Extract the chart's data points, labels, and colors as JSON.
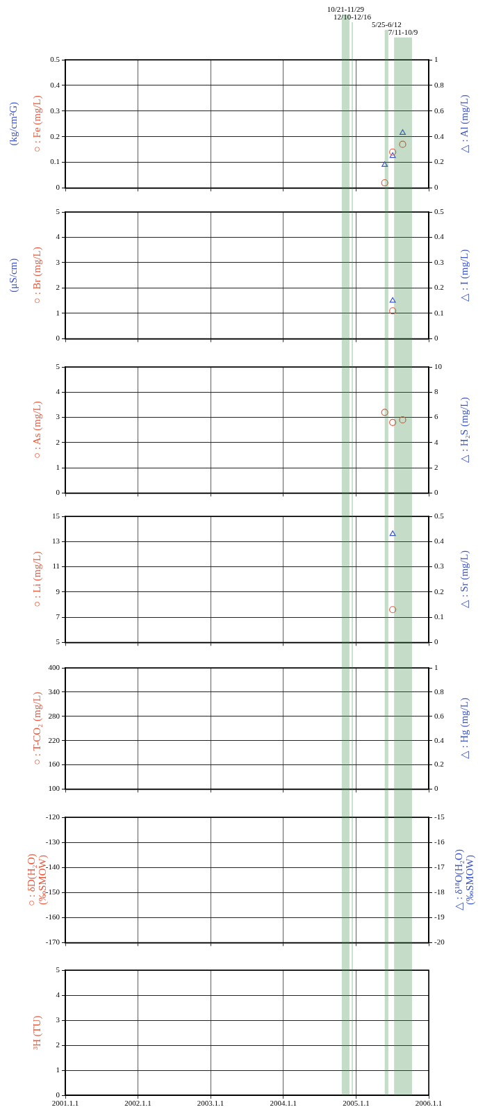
{
  "chart_data": [
    {
      "type": "scatter",
      "ylabel": "○ : Fe (mg/L)",
      "y2label": "△ : Al (mg/L)",
      "annotations": [
        "(kg/cm²G)"
      ],
      "xlim": [
        "2001-01-01",
        "2006-01-01"
      ],
      "xticks": [
        {
          "value": "2001-01-01",
          "label": null
        },
        {
          "value": "2002-01-01",
          "label": null
        },
        {
          "value": "2003-01-01",
          "label": null
        },
        {
          "value": "2004-01-01",
          "label": null
        },
        {
          "value": "2005-01-01",
          "label": null
        },
        {
          "value": "2006-01-01",
          "label": null
        }
      ],
      "ylim": [
        0,
        0.5
      ],
      "yticks": [
        0,
        0.1,
        0.2,
        0.3,
        0.4,
        0.5
      ],
      "y2lim": [
        0,
        1
      ],
      "y2ticks": [
        0,
        0.2,
        0.4,
        0.6,
        0.8,
        1
      ],
      "grid": true,
      "tick_labels": "y",
      "series": [
        {
          "color": "#e8583c",
          "marker": "circle",
          "x": [
            "2005-05-25",
            "2005-07-04",
            "2005-08-23"
          ],
          "values": [
            0.02,
            0.14,
            0.17
          ]
        },
        {
          "color": "#3c55cc",
          "marker": "triangle",
          "axis": "y2",
          "x": [
            "2005-05-25",
            "2005-07-04",
            "2005-08-23"
          ],
          "values": [
            0.18,
            0.25,
            0.43
          ]
        }
      ],
      "bands": [
        {
          "axis": "x",
          "from": "2004-10-21",
          "to": "2004-11-29",
          "label": "10/21-11/29",
          "color": "#3a8a4a"
        },
        {
          "axis": "x",
          "from": "2004-12-10",
          "to": "2004-12-16",
          "label": "12/10-12/16",
          "color": "#3a8a4a"
        },
        {
          "axis": "x",
          "from": "2005-05-25",
          "to": "2005-06-12",
          "label": "5/25-6/12",
          "color": "#3a8a4a"
        },
        {
          "axis": "x",
          "from": "2005-07-11",
          "to": "2005-10-09",
          "label": "7/11-10/9",
          "color": "#3a8a4a"
        }
      ]
    },
    {
      "type": "scatter",
      "ylabel": "○ : Br (mg/L)",
      "y2label": "△ : I (mg/L)",
      "annotations": [
        "(μS/cm)"
      ],
      "xlim": [
        "2001-01-01",
        "2006-01-01"
      ],
      "xticks": [
        {
          "value": "2001-01-01",
          "label": null
        },
        {
          "value": "2002-01-01",
          "label": null
        },
        {
          "value": "2003-01-01",
          "label": null
        },
        {
          "value": "2004-01-01",
          "label": null
        },
        {
          "value": "2005-01-01",
          "label": null
        },
        {
          "value": "2006-01-01",
          "label": null
        }
      ],
      "ylim": [
        0,
        5
      ],
      "yticks": [
        0,
        1,
        2,
        3,
        4,
        5
      ],
      "y2lim": [
        0,
        0.5
      ],
      "y2ticks": [
        0,
        0.1,
        0.2,
        0.3,
        0.4,
        0.5
      ],
      "grid": true,
      "tick_labels": "y",
      "series": [
        {
          "color": "#e8583c",
          "marker": "circle",
          "x": [
            "2005-07-04"
          ],
          "values": [
            1.1
          ]
        },
        {
          "color": "#3c55cc",
          "marker": "triangle",
          "axis": "y2",
          "x": [
            "2005-07-04"
          ],
          "values": [
            0.15
          ]
        }
      ],
      "bands": [
        {
          "axis": "x",
          "from": "2004-10-21",
          "to": "2004-11-29",
          "color": "#3a8a4a"
        },
        {
          "axis": "x",
          "from": "2004-12-10",
          "to": "2004-12-16",
          "color": "#3a8a4a"
        },
        {
          "axis": "x",
          "from": "2005-05-25",
          "to": "2005-06-12",
          "color": "#3a8a4a"
        },
        {
          "axis": "x",
          "from": "2005-07-11",
          "to": "2005-10-09",
          "color": "#3a8a4a"
        }
      ]
    },
    {
      "type": "scatter",
      "ylabel": "○ : As (mg/L)",
      "y2label": "△ : H₂S (mg/L)",
      "xlim": [
        "2001-01-01",
        "2006-01-01"
      ],
      "xticks": [
        {
          "value": "2001-01-01",
          "label": null
        },
        {
          "value": "2002-01-01",
          "label": null
        },
        {
          "value": "2003-01-01",
          "label": null
        },
        {
          "value": "2004-01-01",
          "label": null
        },
        {
          "value": "2005-01-01",
          "label": null
        },
        {
          "value": "2006-01-01",
          "label": null
        }
      ],
      "ylim": [
        0,
        5
      ],
      "yticks": [
        0,
        1,
        2,
        3,
        4,
        5
      ],
      "y2lim": [
        0,
        10
      ],
      "y2ticks": [
        0,
        2,
        4,
        6,
        8,
        10
      ],
      "grid": true,
      "tick_labels": "y",
      "series": [
        {
          "color": "#e8583c",
          "marker": "circle",
          "x": [
            "2005-05-25",
            "2005-07-04",
            "2005-08-23"
          ],
          "values": [
            3.2,
            2.8,
            2.9
          ]
        }
      ],
      "bands": [
        {
          "axis": "x",
          "from": "2004-10-21",
          "to": "2004-11-29",
          "color": "#3a8a4a"
        },
        {
          "axis": "x",
          "from": "2004-12-10",
          "to": "2004-12-16",
          "color": "#3a8a4a"
        },
        {
          "axis": "x",
          "from": "2005-05-25",
          "to": "2005-06-12",
          "color": "#3a8a4a"
        },
        {
          "axis": "x",
          "from": "2005-07-11",
          "to": "2005-10-09",
          "color": "#3a8a4a"
        }
      ]
    },
    {
      "type": "scatter",
      "ylabel": "○ : Li (mg/L)",
      "y2label": "△ : Sr (mg/L)",
      "xlim": [
        "2001-01-01",
        "2006-01-01"
      ],
      "xticks": [
        {
          "value": "2001-01-01",
          "label": null
        },
        {
          "value": "2002-01-01",
          "label": null
        },
        {
          "value": "2003-01-01",
          "label": null
        },
        {
          "value": "2004-01-01",
          "label": null
        },
        {
          "value": "2005-01-01",
          "label": null
        },
        {
          "value": "2006-01-01",
          "label": null
        }
      ],
      "ylim": [
        5,
        15
      ],
      "yticks": [
        5,
        7,
        9,
        11,
        13,
        15
      ],
      "y2lim": [
        0,
        0.5
      ],
      "y2ticks": [
        0,
        0.1,
        0.2,
        0.3,
        0.4,
        0.5
      ],
      "grid": true,
      "tick_labels": "y",
      "series": [
        {
          "color": "#e8583c",
          "marker": "circle",
          "x": [
            "2005-07-04"
          ],
          "values": [
            7.6
          ]
        },
        {
          "color": "#3c55cc",
          "marker": "triangle",
          "axis": "y2",
          "x": [
            "2005-07-04"
          ],
          "values": [
            0.43
          ]
        }
      ],
      "bands": [
        {
          "axis": "x",
          "from": "2004-10-21",
          "to": "2004-11-29",
          "color": "#3a8a4a"
        },
        {
          "axis": "x",
          "from": "2004-12-10",
          "to": "2004-12-16",
          "color": "#3a8a4a"
        },
        {
          "axis": "x",
          "from": "2005-05-25",
          "to": "2005-06-12",
          "color": "#3a8a4a"
        },
        {
          "axis": "x",
          "from": "2005-07-11",
          "to": "2005-10-09",
          "color": "#3a8a4a"
        }
      ]
    },
    {
      "type": "scatter",
      "ylabel": "○ : T-CO₂ (mg/L)",
      "y2label": "△ : Hg (mg/L)",
      "xlim": [
        "2001-01-01",
        "2006-01-01"
      ],
      "xticks": [
        {
          "value": "2001-01-01",
          "label": null
        },
        {
          "value": "2002-01-01",
          "label": null
        },
        {
          "value": "2003-01-01",
          "label": null
        },
        {
          "value": "2004-01-01",
          "label": null
        },
        {
          "value": "2005-01-01",
          "label": null
        },
        {
          "value": "2006-01-01",
          "label": null
        }
      ],
      "ylim": [
        100,
        400
      ],
      "yticks": [
        100,
        160,
        220,
        280,
        340,
        400
      ],
      "y2lim": [
        0,
        1
      ],
      "y2ticks": [
        0,
        0.2,
        0.4,
        0.6,
        0.8,
        1
      ],
      "grid": true,
      "tick_labels": "y",
      "bands": [
        {
          "axis": "x",
          "from": "2004-10-21",
          "to": "2004-11-29",
          "color": "#3a8a4a"
        },
        {
          "axis": "x",
          "from": "2004-12-10",
          "to": "2004-12-16",
          "color": "#3a8a4a"
        },
        {
          "axis": "x",
          "from": "2005-05-25",
          "to": "2005-06-12",
          "color": "#3a8a4a"
        },
        {
          "axis": "x",
          "from": "2005-07-11",
          "to": "2005-10-09",
          "color": "#3a8a4a"
        }
      ]
    },
    {
      "type": "scatter",
      "ylabel": "○ : δD(H₂O)\n(‰SMOW)",
      "y2label": "△ : δ¹⁸O(H₂O)\n(‰SMOW)",
      "xlim": [
        "2001-01-01",
        "2006-01-01"
      ],
      "xticks": [
        {
          "value": "2001-01-01",
          "label": null
        },
        {
          "value": "2002-01-01",
          "label": null
        },
        {
          "value": "2003-01-01",
          "label": null
        },
        {
          "value": "2004-01-01",
          "label": null
        },
        {
          "value": "2005-01-01",
          "label": null
        },
        {
          "value": "2006-01-01",
          "label": null
        }
      ],
      "ylim": [
        -170,
        -120
      ],
      "yticks": [
        -170,
        -160,
        -150,
        -140,
        -130,
        -120
      ],
      "y2lim": [
        -20,
        -15
      ],
      "y2ticks": [
        -20,
        -19,
        -18,
        -17,
        -16,
        -15
      ],
      "grid": true,
      "tick_labels": "y",
      "bands": [
        {
          "axis": "x",
          "from": "2004-10-21",
          "to": "2004-11-29",
          "color": "#3a8a4a"
        },
        {
          "axis": "x",
          "from": "2004-12-10",
          "to": "2004-12-16",
          "color": "#3a8a4a"
        },
        {
          "axis": "x",
          "from": "2005-05-25",
          "to": "2005-06-12",
          "color": "#3a8a4a"
        },
        {
          "axis": "x",
          "from": "2005-07-11",
          "to": "2005-10-09",
          "color": "#3a8a4a"
        }
      ]
    },
    {
      "type": "scatter",
      "ylabel": "³H (TU)",
      "xlim": [
        "2001-01-01",
        "2006-01-01"
      ],
      "xticks": [
        {
          "value": "2001-01-01",
          "label": "2001.1.1"
        },
        {
          "value": "2002-01-01",
          "label": "2002.1.1"
        },
        {
          "value": "2003-01-01",
          "label": "2003.1.1"
        },
        {
          "value": "2004-01-01",
          "label": "2004.1.1"
        },
        {
          "value": "2005-01-01",
          "label": "2005.1.1"
        },
        {
          "value": "2006-01-01",
          "label": "2006.1.1"
        }
      ],
      "ylim": [
        0,
        5
      ],
      "yticks": [
        0,
        1,
        2,
        3,
        4,
        5
      ],
      "grid": true,
      "bands": [
        {
          "axis": "x",
          "from": "2004-10-21",
          "to": "2004-11-29",
          "color": "#3a8a4a"
        },
        {
          "axis": "x",
          "from": "2004-12-10",
          "to": "2004-12-16",
          "color": "#3a8a4a"
        },
        {
          "axis": "x",
          "from": "2005-05-25",
          "to": "2005-06-12",
          "color": "#3a8a4a"
        },
        {
          "axis": "x",
          "from": "2005-07-11",
          "to": "2005-10-09",
          "color": "#3a8a4a"
        }
      ]
    }
  ]
}
